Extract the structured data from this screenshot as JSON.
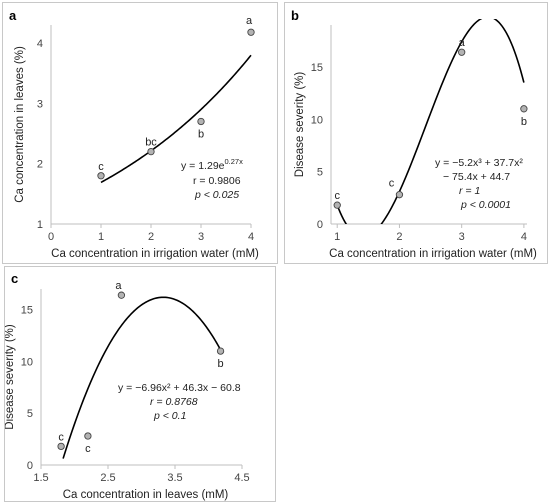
{
  "chart_data": [
    {
      "panel": "a",
      "type": "scatter",
      "xlabel": "Ca concentration in irrigation water (mM)",
      "ylabel": "Ca concentration in leaves (%)",
      "xlim": [
        0,
        4
      ],
      "ylim": [
        1,
        4.3
      ],
      "xticks": [
        "0",
        "1",
        "2",
        "3",
        "4"
      ],
      "yticks": [
        "1",
        "2",
        "3",
        "4"
      ],
      "points": [
        {
          "x": 1,
          "y": 1.8,
          "label": "c"
        },
        {
          "x": 2,
          "y": 2.2,
          "label": "bc"
        },
        {
          "x": 3,
          "y": 2.7,
          "label": "b"
        },
        {
          "x": 4,
          "y": 4.18,
          "label": "a"
        }
      ],
      "fit": {
        "model": "exponential",
        "a": 1.29,
        "b": 0.27,
        "xrange": [
          1,
          4
        ]
      },
      "equation": [
        "y = 1.29e",
        "0.27x",
        "r = 0.9806",
        "p < 0.025"
      ]
    },
    {
      "panel": "b",
      "type": "scatter",
      "xlabel": "Ca concentration in irrigation water (mM)",
      "ylabel": "Disease severity (%)",
      "xlim": [
        0.9,
        4.05
      ],
      "ylim": [
        0,
        19
      ],
      "xticks": [
        "1",
        "2",
        "3",
        "4"
      ],
      "yticks": [
        "0",
        "5",
        "10",
        "15"
      ],
      "points": [
        {
          "x": 1,
          "y": 1.8,
          "label": "c"
        },
        {
          "x": 2,
          "y": 2.8,
          "label": "c"
        },
        {
          "x": 3,
          "y": 16.4,
          "label": "a"
        },
        {
          "x": 4,
          "y": 11,
          "label": "b"
        }
      ],
      "fit": {
        "model": "cubic",
        "coef": [
          -5.2,
          37.7,
          -75.4,
          44.7
        ],
        "xrange": [
          1,
          4
        ]
      },
      "equation": [
        "y = −5.2x³ + 37.7x²",
        "− 75.4x + 44.7",
        "r = 1",
        "p < 0.0001"
      ]
    },
    {
      "panel": "c",
      "type": "scatter",
      "xlabel": "Ca concentration in leaves (mM)",
      "ylabel": "Disease severity (%)",
      "xlim": [
        1.5,
        4.5
      ],
      "ylim": [
        0,
        17
      ],
      "xticks": [
        "1.5",
        "2.5",
        "3.5",
        "4.5"
      ],
      "yticks": [
        "0",
        "5",
        "10",
        "15"
      ],
      "points": [
        {
          "x": 1.8,
          "y": 1.8,
          "label": "c"
        },
        {
          "x": 2.2,
          "y": 2.8,
          "label": "c"
        },
        {
          "x": 2.7,
          "y": 16.4,
          "label": "a"
        },
        {
          "x": 4.18,
          "y": 11,
          "label": "b"
        }
      ],
      "fit": {
        "model": "quadratic",
        "coef": [
          -6.96,
          46.3,
          -60.8
        ],
        "xrange": [
          1.83,
          4.18
        ]
      },
      "equation": [
        "y = −6.96x² + 46.3x − 60.8",
        "r = 0.8768",
        "p < 0.1"
      ]
    }
  ],
  "colors": {
    "point_fill": "#b3b3b3",
    "point_stroke": "#444444",
    "line": "#000000",
    "axis": "#bfbfbf"
  }
}
